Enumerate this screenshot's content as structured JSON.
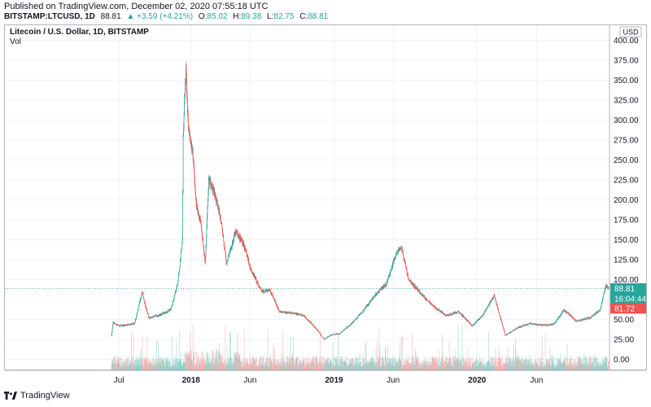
{
  "header": {
    "published": "Published on TradingView.com, December 02, 2020 07:55:18 UTC",
    "symbol": "BITSTAMP:LTCUSD, 1D",
    "price": "88.81",
    "change": "▲ +3.59 (+4.21%)",
    "o_label": "O:",
    "o_value": "85.02",
    "h_label": "H:",
    "h_value": "89.38",
    "l_label": "L:",
    "l_value": "82.75",
    "c_label": "C:",
    "c_value": "88.81"
  },
  "legend": {
    "title": "Litecoin / U.S. Dollar, 1D, BITSTAMP",
    "vol": "Vol"
  },
  "footer": {
    "brand": "TradingView"
  },
  "colors": {
    "up": "#26a69a",
    "down": "#ef5350",
    "price_tag": "#26a69a",
    "countdown_tag": "#26a69a",
    "low_tag": "#ef5350"
  },
  "chart_data": {
    "type": "candlestick",
    "currency_label": "USD",
    "y_ticks": [
      "400.00",
      "375.00",
      "350.00",
      "325.00",
      "300.00",
      "275.00",
      "250.00",
      "225.00",
      "200.00",
      "175.00",
      "150.00",
      "125.00",
      "100.00",
      "50.00",
      "25.00",
      "0.00"
    ],
    "y_tick_values": [
      400,
      375,
      350,
      325,
      300,
      275,
      250,
      225,
      200,
      175,
      150,
      125,
      100,
      50,
      25,
      0
    ],
    "ylim": [
      0,
      400
    ],
    "x_ticks": [
      "Jul",
      "2018",
      "Jun",
      "2019",
      "Jun",
      "2020",
      "Jun"
    ],
    "x_tick_dates": [
      "2017-07-01",
      "2018-01-01",
      "2018-06-01",
      "2019-01-01",
      "2019-06-01",
      "2020-01-01",
      "2020-06-01"
    ],
    "x_range": [
      "2017-06-12",
      "2020-12-02"
    ],
    "price_tags": [
      {
        "label": "88.81",
        "value": 88.81,
        "kind": "price"
      },
      {
        "label": "16:04:44",
        "value": 76,
        "kind": "countdown"
      },
      {
        "label": "81.72",
        "value": 64,
        "kind": "low"
      }
    ],
    "last_price": 88.81,
    "close_path": [
      [
        "2017-06-12",
        30
      ],
      [
        "2017-06-16",
        46
      ],
      [
        "2017-07-01",
        42
      ],
      [
        "2017-07-20",
        43
      ],
      [
        "2017-08-10",
        45
      ],
      [
        "2017-08-29",
        85
      ],
      [
        "2017-09-05",
        70
      ],
      [
        "2017-09-15",
        52
      ],
      [
        "2017-10-10",
        55
      ],
      [
        "2017-11-10",
        62
      ],
      [
        "2017-11-28",
        95
      ],
      [
        "2017-12-10",
        150
      ],
      [
        "2017-12-12",
        280
      ],
      [
        "2017-12-15",
        320
      ],
      [
        "2017-12-19",
        365
      ],
      [
        "2017-12-25",
        290
      ],
      [
        "2018-01-05",
        260
      ],
      [
        "2018-01-15",
        190
      ],
      [
        "2018-01-25",
        175
      ],
      [
        "2018-02-06",
        120
      ],
      [
        "2018-02-15",
        225
      ],
      [
        "2018-03-01",
        210
      ],
      [
        "2018-03-20",
        170
      ],
      [
        "2018-04-01",
        120
      ],
      [
        "2018-04-25",
        160
      ],
      [
        "2018-05-15",
        145
      ],
      [
        "2018-06-01",
        115
      ],
      [
        "2018-06-15",
        100
      ],
      [
        "2018-07-01",
        85
      ],
      [
        "2018-07-20",
        88
      ],
      [
        "2018-08-15",
        60
      ],
      [
        "2018-09-15",
        58
      ],
      [
        "2018-10-15",
        55
      ],
      [
        "2018-11-14",
        40
      ],
      [
        "2018-12-07",
        25
      ],
      [
        "2018-12-25",
        31
      ],
      [
        "2019-01-15",
        32
      ],
      [
        "2019-02-15",
        45
      ],
      [
        "2019-03-15",
        60
      ],
      [
        "2019-04-15",
        80
      ],
      [
        "2019-05-15",
        95
      ],
      [
        "2019-06-10",
        135
      ],
      [
        "2019-06-22",
        140
      ],
      [
        "2019-07-10",
        100
      ],
      [
        "2019-08-15",
        80
      ],
      [
        "2019-09-15",
        65
      ],
      [
        "2019-10-15",
        55
      ],
      [
        "2019-11-15",
        60
      ],
      [
        "2019-12-20",
        42
      ],
      [
        "2020-01-15",
        55
      ],
      [
        "2020-02-14",
        80
      ],
      [
        "2020-03-13",
        30
      ],
      [
        "2020-04-15",
        40
      ],
      [
        "2020-05-15",
        45
      ],
      [
        "2020-06-15",
        43
      ],
      [
        "2020-07-15",
        44
      ],
      [
        "2020-08-10",
        62
      ],
      [
        "2020-09-10",
        48
      ],
      [
        "2020-10-15",
        52
      ],
      [
        "2020-11-10",
        62
      ],
      [
        "2020-11-24",
        92
      ],
      [
        "2020-12-02",
        88.81
      ]
    ]
  }
}
